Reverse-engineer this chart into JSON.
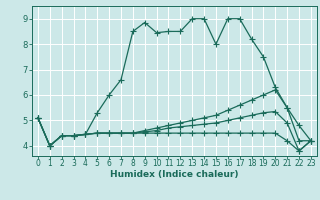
{
  "title": "",
  "xlabel": "Humidex (Indice chaleur)",
  "bg_color": "#cce8e8",
  "grid_color": "#ffffff",
  "line_color": "#1a6b5a",
  "xlim": [
    -0.5,
    23.5
  ],
  "ylim": [
    3.6,
    9.5
  ],
  "xticks": [
    0,
    1,
    2,
    3,
    4,
    5,
    6,
    7,
    8,
    9,
    10,
    11,
    12,
    13,
    14,
    15,
    16,
    17,
    18,
    19,
    20,
    21,
    22,
    23
  ],
  "yticks": [
    4,
    5,
    6,
    7,
    8,
    9
  ],
  "line1_x": [
    0,
    1,
    2,
    3,
    4,
    5,
    6,
    7,
    8,
    9,
    10,
    11,
    12,
    13,
    14,
    15,
    16,
    17,
    18,
    19,
    20,
    21,
    22,
    23
  ],
  "line1_y": [
    5.1,
    4.0,
    4.4,
    4.4,
    4.45,
    5.3,
    6.0,
    6.6,
    8.5,
    8.85,
    8.45,
    8.5,
    8.5,
    9.0,
    9.0,
    8.0,
    9.0,
    9.0,
    8.2,
    7.5,
    6.3,
    5.5,
    4.8,
    4.2
  ],
  "line2_x": [
    0,
    1,
    2,
    3,
    4,
    5,
    6,
    7,
    8,
    9,
    10,
    11,
    12,
    13,
    14,
    15,
    16,
    17,
    18,
    19,
    20,
    21,
    22,
    23
  ],
  "line2_y": [
    5.1,
    4.0,
    4.4,
    4.4,
    4.45,
    4.5,
    4.5,
    4.5,
    4.5,
    4.6,
    4.7,
    4.8,
    4.9,
    5.0,
    5.1,
    5.2,
    5.4,
    5.6,
    5.8,
    6.0,
    6.2,
    5.5,
    4.2,
    4.2
  ],
  "line3_x": [
    0,
    1,
    2,
    3,
    4,
    5,
    6,
    7,
    8,
    9,
    10,
    11,
    12,
    13,
    14,
    15,
    16,
    17,
    18,
    19,
    20,
    21,
    22,
    23
  ],
  "line3_y": [
    5.1,
    4.0,
    4.4,
    4.4,
    4.45,
    4.5,
    4.5,
    4.5,
    4.5,
    4.55,
    4.6,
    4.7,
    4.75,
    4.8,
    4.85,
    4.9,
    5.0,
    5.1,
    5.2,
    5.3,
    5.35,
    4.9,
    3.8,
    4.2
  ],
  "line4_x": [
    0,
    1,
    2,
    3,
    4,
    5,
    6,
    7,
    8,
    9,
    10,
    11,
    12,
    13,
    14,
    15,
    16,
    17,
    18,
    19,
    20,
    21,
    22,
    23
  ],
  "line4_y": [
    5.1,
    4.0,
    4.4,
    4.4,
    4.45,
    4.5,
    4.5,
    4.5,
    4.5,
    4.5,
    4.5,
    4.5,
    4.5,
    4.5,
    4.5,
    4.5,
    4.5,
    4.5,
    4.5,
    4.5,
    4.5,
    4.2,
    3.8,
    4.2
  ],
  "xticklabels": [
    "0",
    "1",
    "2",
    "3",
    "4",
    "5",
    "6",
    "7",
    "8",
    "9",
    "10",
    "11",
    "12",
    "13",
    "14",
    "15",
    "16",
    "17",
    "18",
    "19",
    "20",
    "21",
    "22",
    "23"
  ]
}
